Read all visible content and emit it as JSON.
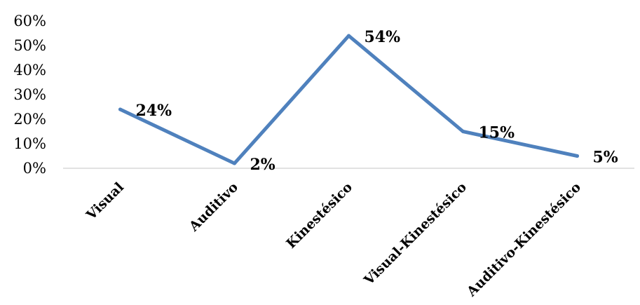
{
  "chart_data": {
    "type": "line",
    "title": "",
    "xlabel": "",
    "ylabel": "",
    "categories": [
      "Visual",
      "Auditivo",
      "Kinestésico",
      "Visual-Kinestésico",
      "Auditivo-Kinestésico"
    ],
    "series": [
      {
        "values": [
          24,
          2,
          54,
          15,
          5
        ],
        "data_labels": [
          "24%",
          "2%",
          "54%",
          "15%",
          "5%"
        ]
      }
    ],
    "y_ticks": [
      0,
      10,
      20,
      30,
      40,
      50,
      60
    ],
    "y_tick_labels": [
      "0%",
      "10%",
      "20%",
      "30%",
      "40%",
      "50%",
      "60%"
    ],
    "ylim": [
      0,
      60
    ],
    "grid": false,
    "legend": "none",
    "x_tick_rotation": "-45deg",
    "colors": {
      "line": "#4F81BD",
      "axis": "#D9D9D9",
      "text": "#000000"
    }
  }
}
